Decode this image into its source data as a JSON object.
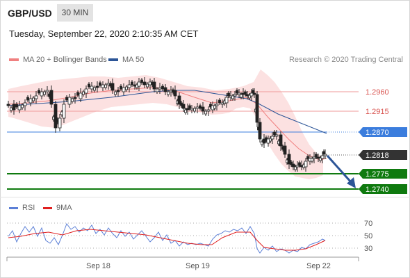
{
  "header": {
    "pair": "GBP/USD",
    "timeframe": "30 MIN",
    "datetime": "Tuesday, September 22, 2020 2:10:35 AM CET"
  },
  "legend": {
    "ma20": "MA 20 + Bollinger Bands",
    "ma50": "MA 50",
    "ma20_color": "#f08080",
    "ma50_color": "#2c5597",
    "credit": "Research © 2020 Trading Central"
  },
  "levels": {
    "r2": "1.2960",
    "r1": "1.2915",
    "pivot": "1.2870",
    "last": "1.2818",
    "s1": "1.2775",
    "s2": "1.2740",
    "pivot_color": "#3b7ddd",
    "support_color": "#0f7a0f",
    "resistance_color": "#d9534f",
    "last_color": "#333333"
  },
  "rsi": {
    "label": "RSI",
    "ma_label": "9MA",
    "rsi_color": "#5b7fd6",
    "ma_color": "#e02020",
    "ticks": [
      "70",
      "50",
      "30"
    ]
  },
  "xaxis": {
    "ticks": [
      "Sep 18",
      "Sep 19",
      "Sep 22"
    ]
  },
  "icons": {
    "forecast": "down-arrow-icon"
  }
}
